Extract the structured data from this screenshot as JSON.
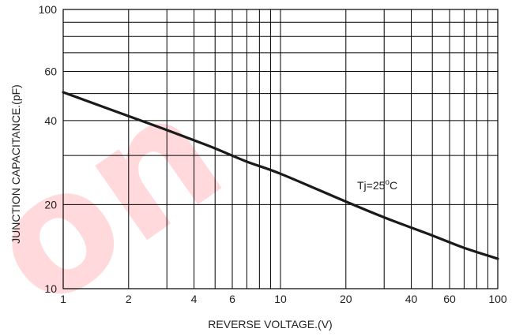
{
  "chart_data": {
    "type": "line",
    "title": "",
    "xlabel": "REVERSE VOLTAGE.(V)",
    "ylabel": "JUNCTION CAPACITANCE.(pF)",
    "x_scale": "log",
    "y_scale": "log",
    "xlim": [
      1,
      100
    ],
    "ylim": [
      10,
      100
    ],
    "x_ticks": [
      1,
      2,
      4,
      6,
      10,
      20,
      40,
      60,
      100
    ],
    "x_tick_labels": [
      "1",
      "2",
      "4",
      "6",
      "10",
      "20",
      "40",
      "60",
      "100"
    ],
    "y_ticks": [
      10,
      20,
      40,
      60,
      100
    ],
    "y_tick_labels": [
      "10",
      "20",
      "40",
      "60",
      "100"
    ],
    "grid": true,
    "annotation": "Tj=25°C",
    "line_color": "#1a1a1a",
    "series": [
      {
        "x": [
          1,
          2,
          3,
          4,
          5,
          7,
          10,
          20,
          30,
          50,
          70,
          100
        ],
        "y": [
          50.5,
          41.5,
          37,
          34,
          31.8,
          28.5,
          25.8,
          20.5,
          18,
          15.5,
          14,
          12.8
        ]
      }
    ]
  },
  "watermark": {
    "text": "on",
    "color": "#ff3344"
  }
}
